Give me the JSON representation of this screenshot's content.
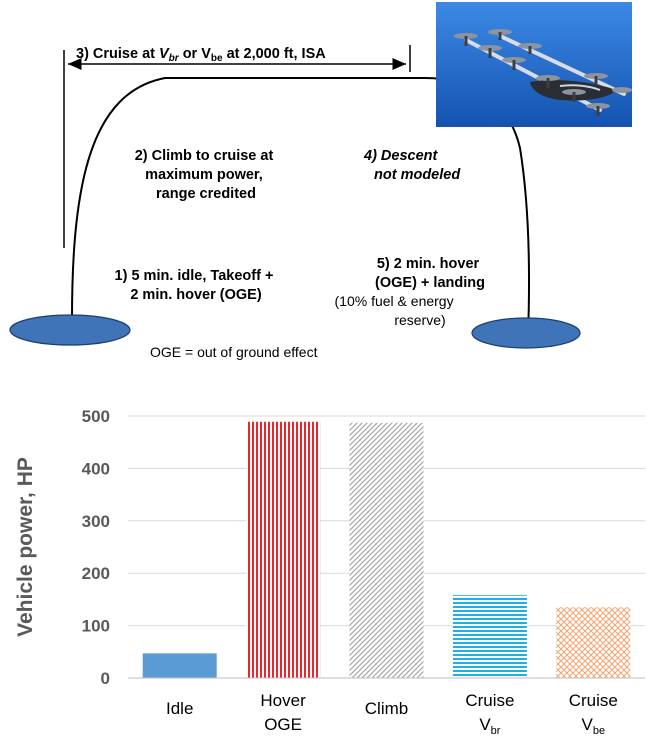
{
  "mission": {
    "cruise_prefix": "3) Cruise at ",
    "cruise_vbr_v": "V",
    "cruise_vbr_sub": "br",
    "cruise_or": " or V",
    "cruise_vbe_sub": "be",
    "cruise_suffix": " at 2,000 ft, ISA",
    "climb_lines": [
      "2) Climb to cruise at",
      "maximum power,",
      "range credited"
    ],
    "descent_lines": [
      "4) Descent",
      "not modeled"
    ],
    "takeoff_lines": [
      "1) 5 min. idle, Takeoff +",
      "2 min. hover (OGE)"
    ],
    "landing_lines": [
      "5) 2 min. hover",
      "(OGE) + landing"
    ],
    "reserve_lines": [
      "(10% fuel & energy",
      "reserve)"
    ],
    "oge_note": "OGE = out of ground effect",
    "pad_color": "#3f74b8",
    "photo_sky": "#1f6fcf"
  },
  "chart_data": {
    "type": "bar",
    "ylabel": "Vehicle power, HP",
    "ylim": [
      0,
      500
    ],
    "yticks": [
      "0",
      "100",
      "200",
      "300",
      "400",
      "500"
    ],
    "categories": [
      {
        "line1": "Idle",
        "line2": "",
        "sub": ""
      },
      {
        "line1": "Hover",
        "line2": "OGE",
        "sub": ""
      },
      {
        "line1": "Climb",
        "line2": "",
        "sub": ""
      },
      {
        "line1": "Cruise",
        "line2": "V",
        "sub": "br"
      },
      {
        "line1": "Cruise",
        "line2": "V",
        "sub": "be"
      }
    ],
    "values": [
      47,
      489,
      487,
      158,
      135
    ],
    "colors": [
      "#5b9bd5",
      "#e8262c",
      "#a6a6a6",
      "#1cb1e6",
      "#f4a46f"
    ],
    "patterns": [
      "solid",
      "vertical",
      "diagonal",
      "horizontal",
      "crosshatch"
    ],
    "grid": true
  }
}
